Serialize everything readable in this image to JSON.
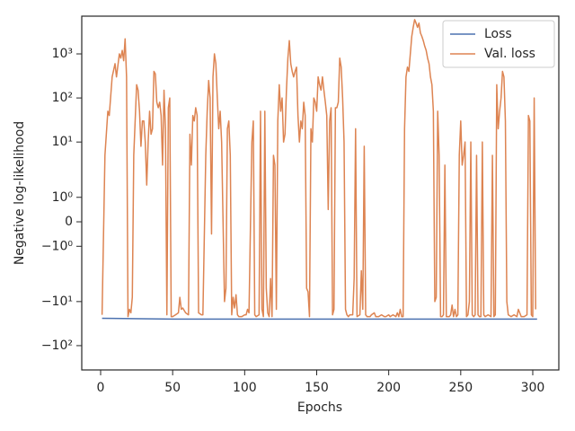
{
  "chart_data": {
    "type": "line",
    "xlabel": "Epochs",
    "ylabel": "Negative log-likelihood",
    "yscale": "symlog",
    "linthresh": 2,
    "xlim": [
      -13.1,
      318.1
    ],
    "xticks": [
      0,
      50,
      100,
      150,
      200,
      250,
      300
    ],
    "ylim": [
      -356,
      7180
    ],
    "yticks": [
      {
        "value": -100,
        "label": "−10²"
      },
      {
        "value": -10,
        "label": "−10¹"
      },
      {
        "value": -1,
        "label": "−10⁰"
      },
      0,
      {
        "value": 1,
        "label": "10⁰"
      },
      {
        "value": 10,
        "label": "10¹"
      },
      {
        "value": 100,
        "label": "10²"
      },
      {
        "value": 1000,
        "label": "10³"
      }
    ],
    "legend": "upper right",
    "series": [
      {
        "name": "Loss",
        "color": "#4c72b0",
        "x": [
          1,
          50,
          100,
          200,
          303
        ],
        "values": [
          -24,
          -25,
          -25,
          -25,
          -25
        ]
      },
      {
        "name": "Val. loss",
        "color": "#dd8452",
        "x": [
          1,
          3,
          5,
          6,
          8,
          10,
          11,
          13,
          14,
          15,
          16,
          17,
          18,
          19,
          20,
          21,
          22,
          23,
          25,
          26,
          27,
          28,
          29,
          30,
          31,
          32,
          33,
          34,
          35,
          36,
          37,
          38,
          39,
          40,
          41,
          42,
          43,
          44,
          45,
          46,
          47,
          48,
          49,
          50,
          52,
          54,
          55,
          56,
          57,
          59,
          61,
          62,
          63,
          64,
          65,
          66,
          67,
          68,
          70,
          71,
          73,
          74,
          75,
          76,
          77,
          78,
          79,
          80,
          81,
          82,
          83,
          84,
          86,
          87,
          88,
          89,
          90,
          91,
          92,
          93,
          94,
          95,
          96,
          98,
          100,
          101,
          102,
          103,
          105,
          106,
          107,
          108,
          110,
          111,
          112,
          113,
          114,
          115,
          116,
          117,
          118,
          119,
          120,
          121,
          122,
          123,
          124,
          125,
          126,
          127,
          128,
          129,
          130,
          131,
          132,
          133,
          134,
          135,
          136,
          137,
          138,
          139,
          140,
          141,
          142,
          143,
          144,
          145,
          146,
          147,
          148,
          149,
          150,
          151,
          152,
          153,
          154,
          155,
          156,
          157,
          158,
          159,
          160,
          161,
          162,
          163,
          164,
          165,
          166,
          167,
          168,
          169,
          170,
          171,
          172,
          173,
          175,
          176,
          177,
          178,
          180,
          181,
          182,
          183,
          184,
          185,
          187,
          188,
          190,
          191,
          193,
          195,
          197,
          198,
          200,
          201,
          203,
          205,
          206,
          207,
          208,
          209,
          210,
          211,
          212,
          213,
          214,
          215,
          216,
          217,
          218,
          219,
          220,
          221,
          222,
          223,
          224,
          225,
          226,
          227,
          228,
          229,
          230,
          231,
          232,
          233,
          234,
          235,
          236,
          237,
          238,
          239,
          240,
          242,
          243,
          244,
          245,
          246,
          247,
          248,
          249,
          250,
          251,
          252,
          253,
          254,
          255,
          256,
          257,
          258,
          259,
          260,
          261,
          262,
          263,
          264,
          265,
          266,
          267,
          269,
          271,
          272,
          273,
          274,
          275,
          276,
          277,
          278,
          279,
          280,
          281,
          282,
          283,
          285,
          287,
          289,
          290,
          292,
          294,
          296,
          297,
          298,
          299,
          300,
          301,
          302
        ],
        "values": [
          -20,
          5,
          50,
          40,
          300,
          600,
          300,
          1000,
          800,
          1200,
          700,
          2200,
          300,
          -22,
          -15,
          -18,
          -8,
          5,
          200,
          150,
          50,
          8,
          30,
          30,
          10,
          1.5,
          10,
          50,
          15,
          20,
          400,
          350,
          80,
          60,
          80,
          40,
          3,
          150,
          20,
          -20,
          60,
          100,
          -22,
          -22,
          -20,
          -18,
          -8,
          -15,
          -14,
          -18,
          -20,
          15,
          3,
          40,
          30,
          60,
          40,
          -18,
          -20,
          -20,
          5,
          50,
          250,
          100,
          -0.5,
          300,
          1000,
          600,
          100,
          20,
          50,
          10,
          -10,
          -5,
          20,
          30,
          5,
          -20,
          -8,
          -14,
          -7,
          -20,
          -22,
          -22,
          -20,
          -20,
          -15,
          -18,
          10,
          30,
          -20,
          -22,
          -20,
          50,
          -15,
          -22,
          50,
          -5,
          -18,
          -22,
          -3,
          -22,
          5,
          3,
          -15,
          30,
          200,
          50,
          100,
          10,
          15,
          150,
          800,
          2000,
          600,
          400,
          300,
          400,
          500,
          40,
          10,
          30,
          20,
          80,
          40,
          -5,
          -6,
          -22,
          20,
          10,
          100,
          80,
          50,
          300,
          200,
          150,
          300,
          150,
          80,
          40,
          0.5,
          30,
          60,
          -20,
          -15,
          60,
          60,
          80,
          800,
          500,
          100,
          10,
          -15,
          -20,
          -22,
          -20,
          -20,
          -3,
          20,
          -22,
          -20,
          -2,
          -15,
          8,
          -20,
          -22,
          -22,
          -20,
          -18,
          -22,
          -22,
          -20,
          -22,
          -22,
          -20,
          -22,
          -20,
          -22,
          -18,
          -22,
          -15,
          -22,
          -22,
          20,
          300,
          500,
          400,
          1000,
          2500,
          4000,
          6000,
          5000,
          4000,
          5000,
          3000,
          2500,
          2000,
          1500,
          1200,
          800,
          600,
          300,
          200,
          50,
          -10,
          -8,
          50,
          5,
          -22,
          -22,
          -20,
          3,
          -22,
          -22,
          -20,
          -12,
          -22,
          -15,
          -22,
          -20,
          5,
          30,
          3,
          5,
          10,
          -22,
          -20,
          -10,
          10,
          -20,
          -22,
          -20,
          5,
          -20,
          -22,
          -22,
          10,
          -20,
          -22,
          -20,
          -22,
          5,
          -22,
          -20,
          200,
          20,
          50,
          100,
          400,
          300,
          30,
          -10,
          -20,
          -22,
          -20,
          -22,
          -15,
          -22,
          -22,
          -20,
          40,
          30,
          -20,
          -22,
          100,
          -15
        ]
      }
    ]
  }
}
